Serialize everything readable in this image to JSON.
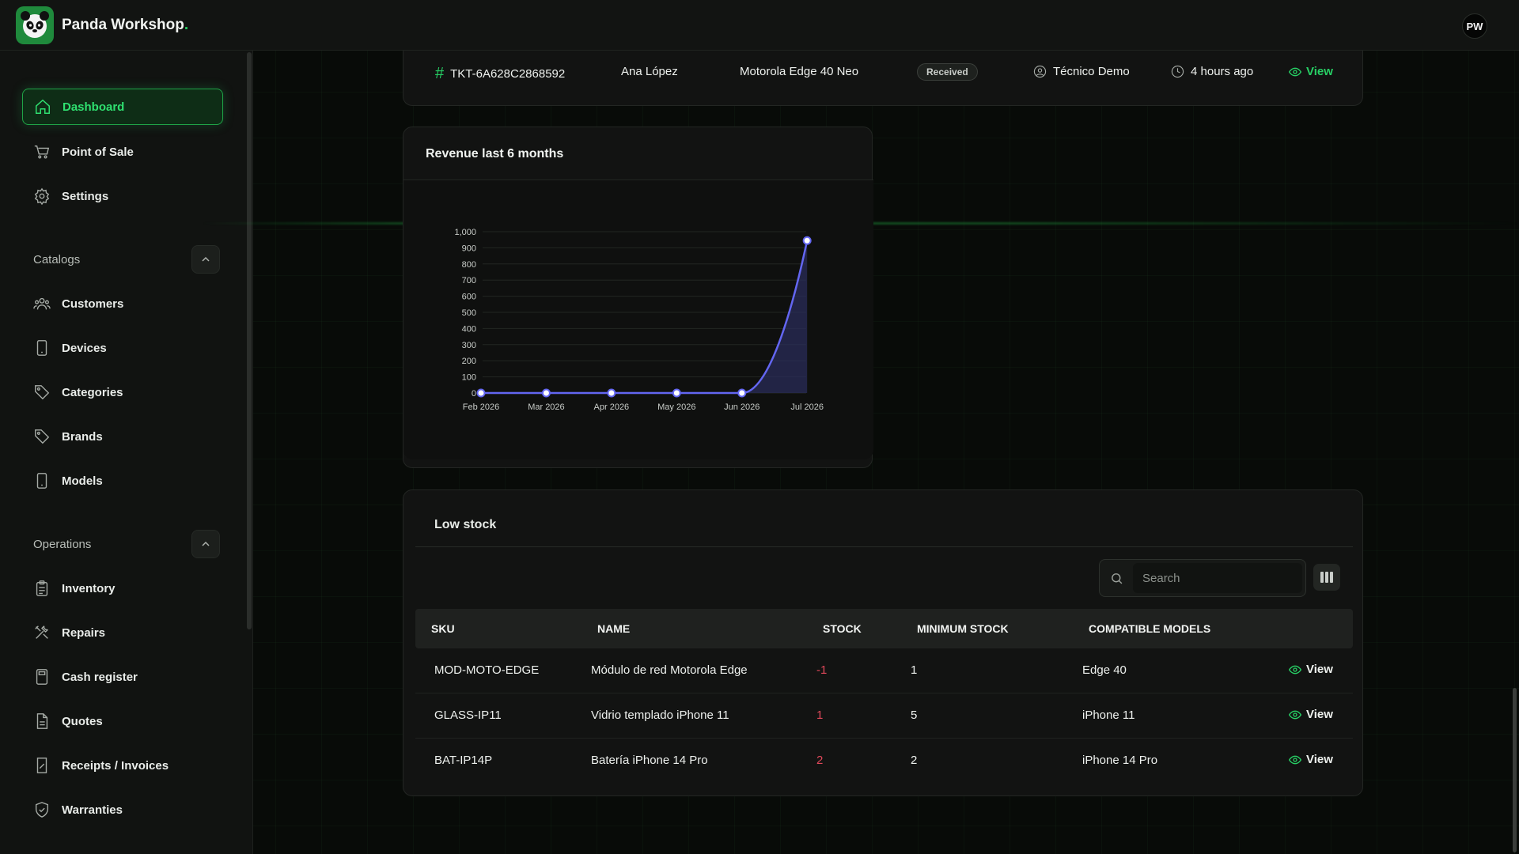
{
  "app": {
    "name": "Panda Workshop",
    "brand_dot": ".",
    "avatar_initials": "PW"
  },
  "sidebar": {
    "top_items": [
      {
        "label": "Dashboard",
        "icon": "home-icon",
        "active": true
      },
      {
        "label": "Point of Sale",
        "icon": "cart-icon"
      },
      {
        "label": "Settings",
        "icon": "gear-icon"
      }
    ],
    "catalogs": {
      "heading": "Catalogs",
      "items": [
        {
          "label": "Customers",
          "icon": "users-icon"
        },
        {
          "label": "Devices",
          "icon": "phone-icon"
        },
        {
          "label": "Categories",
          "icon": "tag-icon"
        },
        {
          "label": "Brands",
          "icon": "tag-icon"
        },
        {
          "label": "Models",
          "icon": "phone-icon"
        }
      ]
    },
    "operations": {
      "heading": "Operations",
      "items": [
        {
          "label": "Inventory",
          "icon": "clipboard-icon"
        },
        {
          "label": "Repairs",
          "icon": "tools-icon"
        },
        {
          "label": "Cash register",
          "icon": "calculator-icon"
        },
        {
          "label": "Quotes",
          "icon": "document-icon"
        },
        {
          "label": "Receipts / Invoices",
          "icon": "receipt-icon"
        },
        {
          "label": "Warranties",
          "icon": "shield-icon"
        }
      ]
    }
  },
  "ticket": {
    "id": "TKT-6A628C2868592",
    "customer": "Ana López",
    "device": "Motorola Edge 40 Neo",
    "status": "Received",
    "technician": "Técnico Demo",
    "time": "4 hours ago",
    "view_label": "View"
  },
  "revenue": {
    "title": "Revenue last 6 months"
  },
  "chart_data": {
    "type": "area",
    "title": "Revenue last 6 months",
    "categories": [
      "Feb 2026",
      "Mar 2026",
      "Apr 2026",
      "May 2026",
      "Jun 2026",
      "Jul 2026"
    ],
    "series": [
      {
        "values": [
          0,
          0,
          0,
          0,
          0,
          945
        ]
      }
    ],
    "ylim": [
      0,
      1000
    ],
    "yticks": [
      "0",
      "100",
      "200",
      "300",
      "400",
      "500",
      "600",
      "700",
      "800",
      "900",
      "1,000"
    ],
    "grid": true,
    "colors": {
      "line": "#6366f1",
      "fill": "#2b2d5c"
    }
  },
  "low_stock": {
    "title": "Low stock",
    "search_placeholder": "Search",
    "columns": [
      "SKU",
      "NAME",
      "STOCK",
      "MINIMUM STOCK",
      "COMPATIBLE MODELS"
    ],
    "view_label": "View",
    "rows": [
      {
        "sku": "MOD-MOTO-EDGE",
        "name": "Módulo de red Motorola Edge",
        "stock": "-1",
        "min": "1",
        "models": "Edge 40"
      },
      {
        "sku": "GLASS-IP11",
        "name": "Vidrio templado iPhone 11",
        "stock": "1",
        "min": "5",
        "models": "iPhone 11"
      },
      {
        "sku": "BAT-IP14P",
        "name": "Batería iPhone 14 Pro",
        "stock": "2",
        "min": "2",
        "models": "iPhone 14 Pro"
      }
    ]
  },
  "colors": {
    "accent": "#27d065",
    "danger": "#e0485a",
    "chart_line": "#6366f1"
  }
}
